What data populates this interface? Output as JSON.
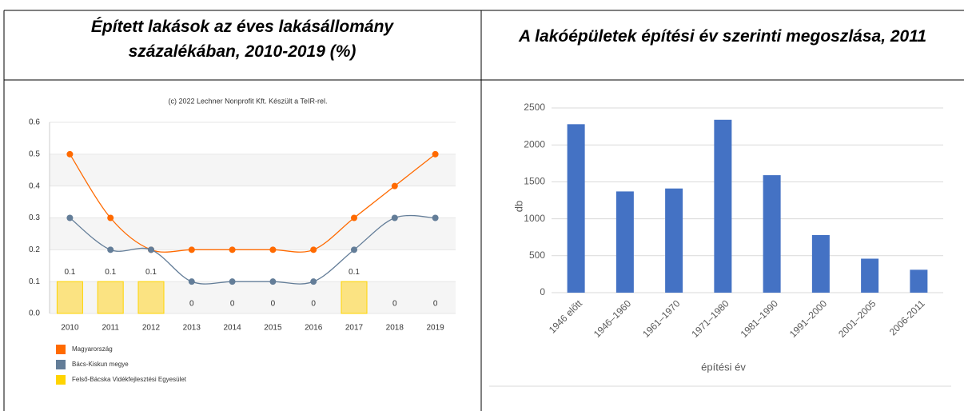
{
  "chart_data": [
    {
      "type": "line",
      "title": "Épített lakások az éves lakásállomány százalékában, 2010-2019 (%)",
      "subtitle": "(c) 2022 Lechner Nonprofit Kft. Készült a TeIR-rel.",
      "categories": [
        "2010",
        "2011",
        "2012",
        "2013",
        "2014",
        "2015",
        "2016",
        "2017",
        "2018",
        "2019"
      ],
      "series": [
        {
          "name": "Magyarország",
          "color": "#ff6a00",
          "kind": "line",
          "values": [
            0.5,
            0.3,
            0.2,
            0.2,
            0.2,
            0.2,
            0.2,
            0.3,
            0.4,
            0.5
          ]
        },
        {
          "name": "Bács-Kiskun megye",
          "color": "#637d98",
          "kind": "line",
          "values": [
            0.3,
            0.2,
            0.2,
            0.1,
            0.1,
            0.1,
            0.1,
            0.2,
            0.3,
            0.3
          ]
        },
        {
          "name": "Felső-Bácska Vidékfejlesztési Egyesület",
          "color": "#ffd400",
          "kind": "bar",
          "values": [
            0.1,
            0.1,
            0.1,
            0,
            0,
            0,
            0,
            0.1,
            0,
            0
          ]
        }
      ],
      "ylim": [
        0,
        0.6
      ],
      "yticks": [
        {
          "value": 0,
          "label": "0.0"
        },
        0.1,
        0.2,
        0.3,
        0.4,
        0.5,
        0.6
      ],
      "grid": true
    },
    {
      "type": "bar",
      "title": "A lakóépületek építési év szerinti megoszlása, 2011",
      "categories": [
        "1946 előtt",
        "1946–1960",
        "1961–1970",
        "1971–1980",
        "1981–1990",
        "1991–2000",
        "2001–2005",
        "2006-2011"
      ],
      "values": [
        2280,
        1370,
        1410,
        2340,
        1590,
        780,
        460,
        310
      ],
      "color": "#4472c4",
      "xlabel": "építési év",
      "ylabel": "db",
      "ylim": [
        0,
        2500
      ],
      "yticks": [
        0,
        500,
        1000,
        1500,
        2000,
        2500
      ],
      "grid": true
    }
  ]
}
